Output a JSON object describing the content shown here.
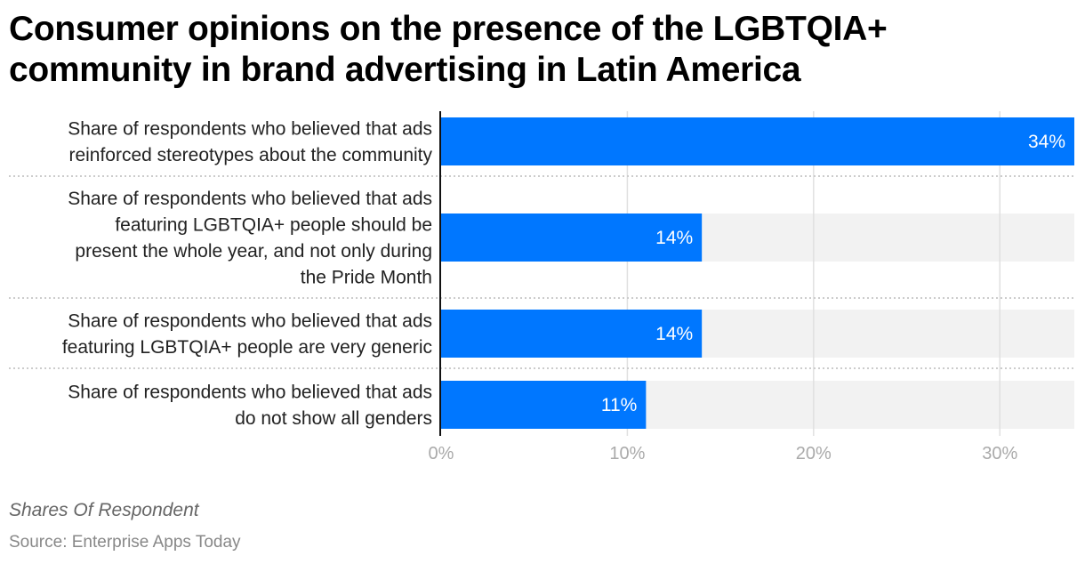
{
  "title": "Consumer opinions on the presence of the LGBTQIA+ community in brand advertising in Latin America",
  "subtitle": "Shares Of Respondent",
  "source": "Source: Enterprise Apps Today",
  "colors": {
    "bar": "#0077FF",
    "band": "#F2F2F2",
    "grid": "#E0E0E0"
  },
  "chart_data": {
    "type": "bar",
    "orientation": "horizontal",
    "categories": [
      [
        "Share of respondents who believed that ads",
        "reinforced stereotypes about the community"
      ],
      [
        "Share of respondents who believed that ads",
        "featuring LGBTQIA+ people should be",
        "present the whole year, and not only during",
        "the Pride Month"
      ],
      [
        "Share of respondents who believed that ads",
        "featuring LGBTQIA+ people are very generic"
      ],
      [
        "Share of respondents who believed that ads",
        "do not show all genders"
      ]
    ],
    "values": [
      34,
      14,
      14,
      11
    ],
    "value_labels": [
      "34%",
      "14%",
      "14%",
      "11%"
    ],
    "xlim": [
      0,
      34
    ],
    "ticks": [
      0,
      10,
      20,
      30
    ],
    "tick_labels": [
      "0%",
      "10%",
      "20%",
      "30%"
    ],
    "grid": true
  }
}
